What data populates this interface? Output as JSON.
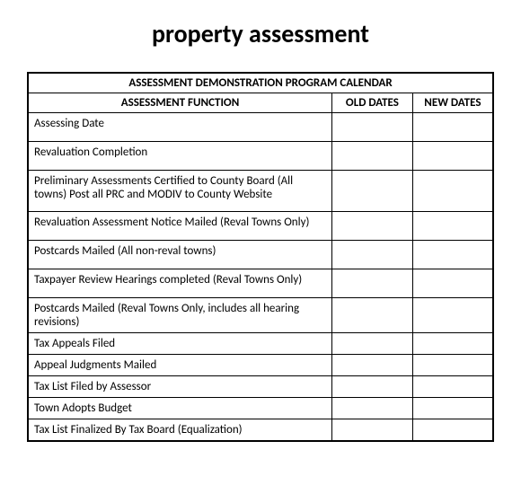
{
  "title": "property assessment",
  "table": {
    "caption": "ASSESSMENT DEMONSTRATION PROGRAM CALENDAR",
    "columns": [
      "ASSESSMENT FUNCTION",
      "OLD DATES",
      "NEW DATES"
    ],
    "rows": [
      {
        "function": "Assessing Date",
        "old": "",
        "new": "",
        "height": "tall"
      },
      {
        "function": "Revaluation  Completion",
        "old": "",
        "new": "",
        "height": "tall"
      },
      {
        "function": "Preliminary Assessments Certified to County Board (All towns) Post all PRC and MODIV to County Website",
        "old": "",
        "new": "",
        "height": "tall3"
      },
      {
        "function": "Revaluation Assessment Notice Mailed (Reval Towns Only)",
        "old": "",
        "new": "",
        "height": "tall"
      },
      {
        "function": "Postcards Mailed (All non-reval towns)",
        "old": "",
        "new": "",
        "height": "tall"
      },
      {
        "function": "Taxpayer Review Hearings completed (Reval Towns Only)",
        "old": "",
        "new": "",
        "height": "tall"
      },
      {
        "function": "Postcards Mailed (Reval Towns Only, includes all hearing revisions)",
        "old": "",
        "new": "",
        "height": "tall"
      },
      {
        "function": "Tax Appeals Filed",
        "old": "",
        "new": "",
        "height": "short"
      },
      {
        "function": "Appeal Judgments Mailed",
        "old": "",
        "new": "",
        "height": "short"
      },
      {
        "function": "Tax List Filed by Assessor",
        "old": "",
        "new": "",
        "height": "short"
      },
      {
        "function": "Town Adopts Budget",
        "old": "",
        "new": "",
        "height": "short"
      },
      {
        "function": "Tax List Finalized By Tax Board    (Equalization)",
        "old": "",
        "new": "",
        "height": "short"
      }
    ]
  }
}
